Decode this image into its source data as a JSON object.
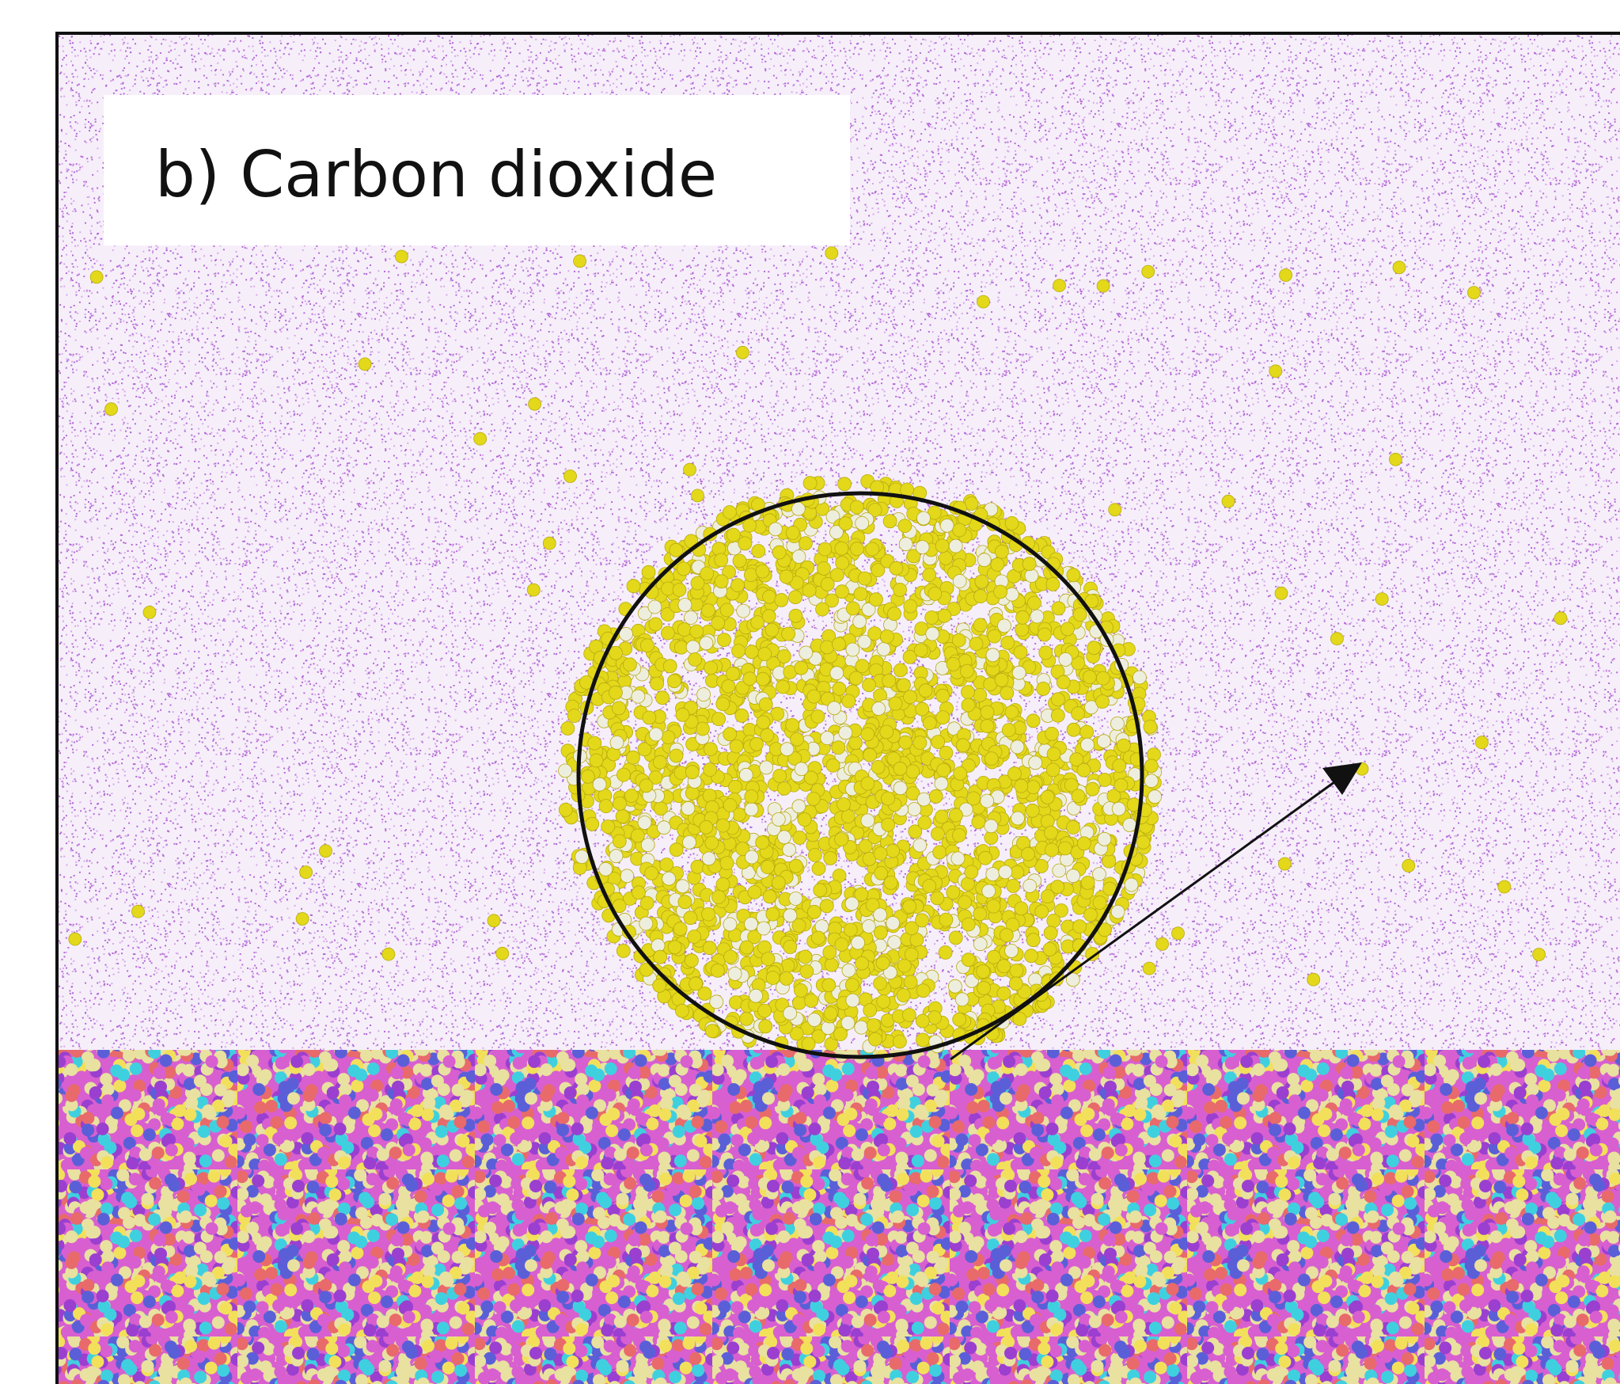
{
  "panel": {
    "label": "b) Carbon dioxide"
  }
}
